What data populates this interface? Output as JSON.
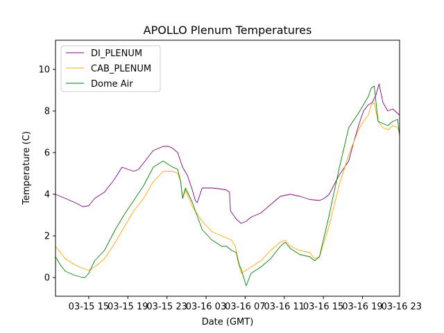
{
  "chart_data": {
    "type": "line",
    "title": "APOLLO Plenum Temperatures",
    "xlabel": "Date (GMT)",
    "ylabel": "Temperature (C)",
    "xlim": [
      0,
      35.2
    ],
    "ylim": [
      -0.9,
      11.4
    ],
    "x_tick_values": [
      3.4,
      7.4,
      11.4,
      15.4,
      19.4,
      23.4,
      27.4,
      31.4,
      35.4
    ],
    "x_tick_labels": [
      "03-15 15",
      "03-15 19",
      "03-15 23",
      "03-16 03",
      "03-16 07",
      "03-16 11",
      "03-16 15",
      "03-16 19",
      "03-16 23"
    ],
    "y_ticks": [
      0,
      2,
      4,
      6,
      8,
      10
    ],
    "y_tick_labels": [
      "0",
      "2",
      "4",
      "6",
      "8",
      "10"
    ],
    "grid": false,
    "legend_position": "top-left",
    "x_note": "hours since 03-15 11:36 GMT",
    "series": [
      {
        "name": "DI_PLENUM",
        "color": "#800080",
        "x": [
          0,
          1,
          2,
          2.8,
          3.4,
          4,
          5,
          6,
          6.4,
          6.8,
          8,
          8.5,
          9,
          10,
          11,
          11.6,
          12,
          12.5,
          13,
          13.5,
          14,
          14.3,
          14.5,
          15,
          16,
          17,
          17.5,
          17.8,
          17.9,
          18.5,
          19,
          19.5,
          20,
          21,
          22,
          22.5,
          23,
          24,
          25,
          26,
          27,
          27.5,
          28,
          29,
          30,
          30.5,
          31,
          31.5,
          32,
          32.4,
          32.8,
          33.1,
          33.5,
          34,
          34.5,
          35.2
        ],
        "y": [
          4.0,
          3.8,
          3.6,
          3.4,
          3.45,
          3.8,
          4.1,
          4.7,
          5.0,
          5.3,
          5.1,
          5.2,
          5.5,
          6.1,
          6.3,
          6.3,
          6.2,
          6.0,
          5.3,
          4.9,
          4.2,
          3.7,
          3.6,
          4.3,
          4.3,
          4.25,
          4.2,
          4.1,
          3.2,
          2.8,
          2.6,
          2.7,
          2.9,
          3.1,
          3.5,
          3.7,
          3.9,
          4.0,
          3.9,
          3.75,
          3.7,
          3.8,
          4.0,
          4.9,
          5.6,
          6.5,
          7.3,
          8.0,
          8.3,
          8.4,
          8.8,
          9.3,
          8.4,
          8.0,
          8.1,
          7.8
        ]
      },
      {
        "name": "CAB_PLENUM",
        "color": "#ffa500",
        "x": [
          0,
          0.5,
          1,
          2,
          3,
          3.4,
          4,
          5,
          6,
          7,
          8,
          9,
          10,
          11,
          12,
          12.5,
          12.8,
          13,
          13.3,
          14,
          15,
          16,
          17,
          18,
          18.4,
          18.6,
          19,
          20,
          21,
          22,
          23,
          23.5,
          24,
          25,
          26,
          26.5,
          27,
          28,
          29,
          30,
          31,
          31.5,
          32,
          32.3,
          32.6,
          33,
          33.5,
          34,
          34.5,
          35,
          35.2
        ],
        "y": [
          1.5,
          1.2,
          0.9,
          0.6,
          0.4,
          0.35,
          0.5,
          0.9,
          1.6,
          2.4,
          3.2,
          3.8,
          4.6,
          5.1,
          5.1,
          5.0,
          4.6,
          3.8,
          4.2,
          3.4,
          2.7,
          2.2,
          2.0,
          1.8,
          1.5,
          0.9,
          0.2,
          0.5,
          0.8,
          1.3,
          1.7,
          1.8,
          1.5,
          1.3,
          1.2,
          0.9,
          1.0,
          2.5,
          4.4,
          5.9,
          7.1,
          7.5,
          7.8,
          8.3,
          8.4,
          7.5,
          7.2,
          7.1,
          7.3,
          7.2,
          6.9
        ]
      },
      {
        "name": "Dome Air",
        "color": "#008000",
        "x": [
          0,
          0.5,
          1,
          2,
          2.8,
          3,
          3.4,
          4,
          5,
          6,
          7,
          8,
          9,
          10,
          11,
          12,
          12.5,
          12.8,
          13,
          13.3,
          14,
          15,
          16,
          17,
          17.5,
          18,
          18.5,
          18.8,
          19,
          19.5,
          20,
          21,
          22,
          22.5,
          23,
          23.5,
          24,
          25,
          26,
          26.5,
          27,
          28,
          29,
          30,
          31,
          31.5,
          32,
          32.3,
          32.6,
          33,
          33.5,
          34,
          34.5,
          35,
          35.2
        ],
        "y": [
          1.0,
          0.6,
          0.3,
          0.1,
          0.0,
          0.0,
          0.2,
          0.8,
          1.3,
          2.2,
          3.0,
          3.7,
          4.4,
          5.3,
          5.6,
          5.3,
          5.2,
          4.6,
          3.8,
          4.3,
          3.6,
          2.3,
          1.8,
          1.5,
          1.5,
          1.3,
          1.2,
          0.6,
          0.4,
          -0.4,
          0.2,
          0.5,
          0.9,
          1.2,
          1.5,
          1.7,
          1.4,
          1.1,
          1.0,
          0.8,
          1.0,
          3.0,
          5.2,
          7.2,
          7.9,
          8.3,
          8.7,
          9.1,
          9.2,
          7.5,
          7.4,
          7.3,
          7.5,
          7.6,
          6.8
        ]
      }
    ]
  }
}
